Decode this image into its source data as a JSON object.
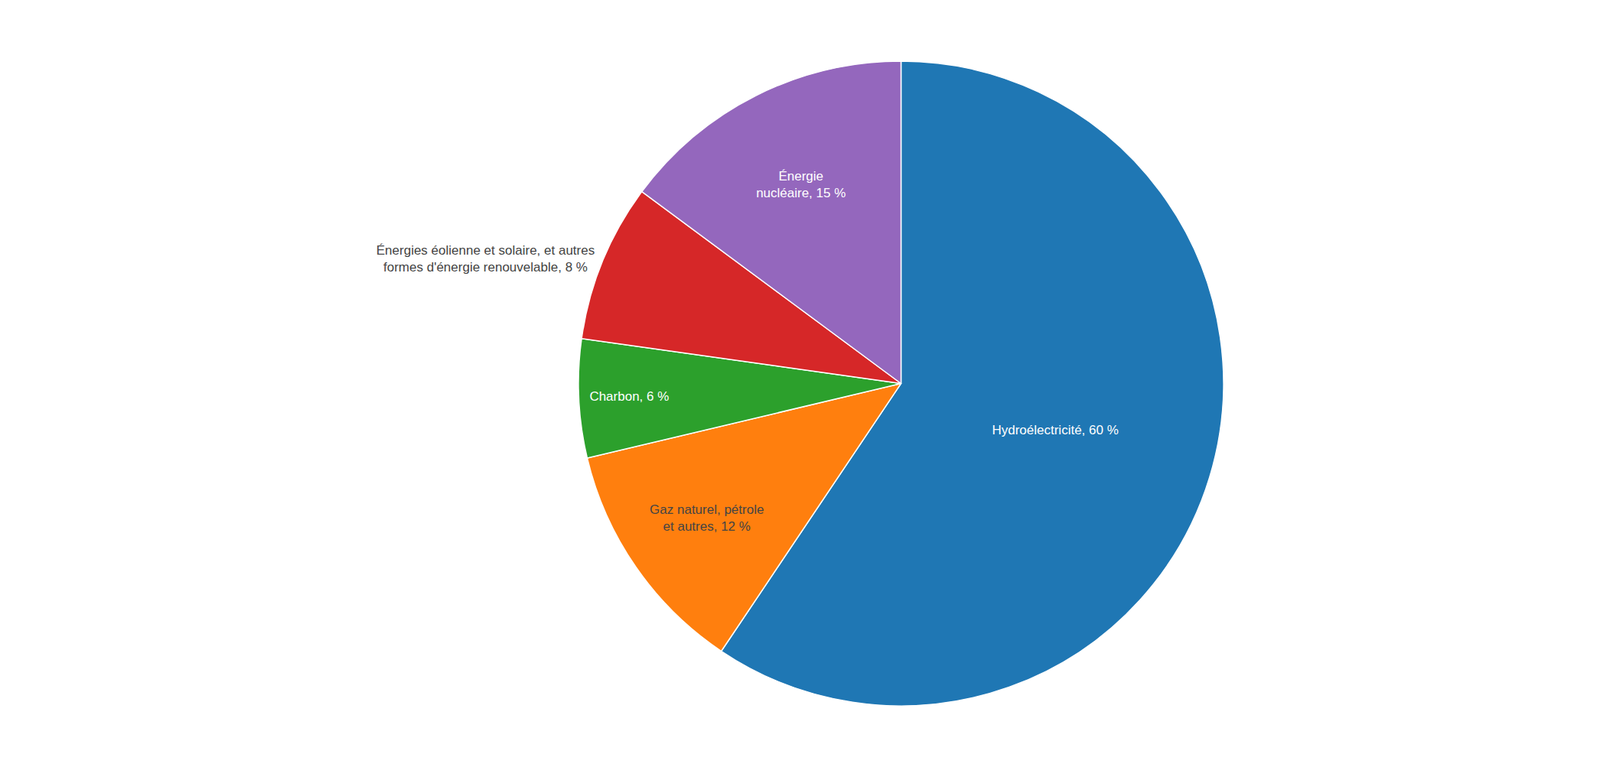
{
  "chart_data": {
    "type": "pie",
    "categories": [
      "Hydroélectricité, 60 %",
      "Gaz naturel, pétrole\net autres, 12 %",
      "Charbon, 6 %",
      "Énergies éolienne et solaire, et autres\nformes d'énergie renouvelable, 8 %",
      "Énergie\nnucléaire, 15 %"
    ],
    "values": [
      60,
      12,
      6,
      8,
      15
    ]
  }
}
